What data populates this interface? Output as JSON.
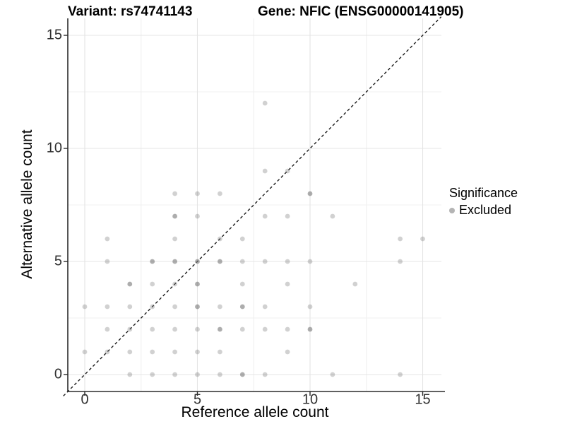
{
  "chart_data": {
    "type": "scatter",
    "title_left": "Variant: rs74741143",
    "title_right": "Gene: NFIC (ENSG00000141905)",
    "xlabel": "Reference allele count",
    "ylabel": "Alternative allele count",
    "x_ticks": [
      0,
      5,
      10,
      15
    ],
    "y_ticks": [
      0,
      5,
      10,
      15
    ],
    "x_minor": [
      2.5,
      7.5,
      12.5
    ],
    "y_minor": [
      2.5,
      7.5,
      12.5
    ],
    "xlim": [
      -0.78,
      16.05
    ],
    "ylim": [
      -0.75,
      15.78
    ],
    "grid": true,
    "legend_position": "right",
    "legend": {
      "title": "Significance",
      "items": [
        {
          "label": "Excluded",
          "color": "#b4b4b4"
        }
      ]
    },
    "reference_line": {
      "type": "identity",
      "style": "dashed",
      "color": "#1a1a1a"
    },
    "point_color": "#7a7a7a",
    "opacity_levels": {
      "light": 0.35,
      "dark": 0.62
    },
    "points": [
      [
        8,
        12,
        1
      ],
      [
        8,
        9,
        1
      ],
      [
        9,
        9,
        1
      ],
      [
        4,
        8,
        1
      ],
      [
        5,
        8,
        1
      ],
      [
        6,
        8,
        1
      ],
      [
        10,
        8,
        2
      ],
      [
        4,
        7,
        2
      ],
      [
        5,
        7,
        1
      ],
      [
        8,
        7,
        1
      ],
      [
        9,
        7,
        1
      ],
      [
        11,
        7,
        1
      ],
      [
        1,
        6,
        1
      ],
      [
        4,
        6,
        1
      ],
      [
        6,
        6,
        1
      ],
      [
        7,
        6,
        1
      ],
      [
        14,
        6,
        1
      ],
      [
        15,
        6,
        1
      ],
      [
        1,
        5,
        1
      ],
      [
        3,
        5,
        2
      ],
      [
        4,
        5,
        2
      ],
      [
        5,
        5,
        2
      ],
      [
        6,
        5,
        2
      ],
      [
        7,
        5,
        1
      ],
      [
        8,
        5,
        1
      ],
      [
        9,
        5,
        1
      ],
      [
        10,
        5,
        1
      ],
      [
        14,
        5,
        1
      ],
      [
        2,
        4,
        2
      ],
      [
        3,
        4,
        1
      ],
      [
        4,
        4,
        1
      ],
      [
        5,
        4,
        2
      ],
      [
        7,
        4,
        1
      ],
      [
        9,
        4,
        1
      ],
      [
        12,
        4,
        1
      ],
      [
        0,
        3,
        1
      ],
      [
        1,
        3,
        1
      ],
      [
        2,
        3,
        1
      ],
      [
        3,
        3,
        1
      ],
      [
        4,
        3,
        1
      ],
      [
        5,
        3,
        2
      ],
      [
        6,
        3,
        1
      ],
      [
        7,
        3,
        2
      ],
      [
        8,
        3,
        1
      ],
      [
        10,
        3,
        1
      ],
      [
        1,
        2,
        1
      ],
      [
        2,
        2,
        1
      ],
      [
        3,
        2,
        1
      ],
      [
        4,
        2,
        1
      ],
      [
        5,
        2,
        1
      ],
      [
        6,
        2,
        2
      ],
      [
        7,
        2,
        1
      ],
      [
        8,
        2,
        1
      ],
      [
        9,
        2,
        1
      ],
      [
        10,
        2,
        2
      ],
      [
        0,
        1,
        1
      ],
      [
        1,
        1,
        1
      ],
      [
        2,
        1,
        1
      ],
      [
        3,
        1,
        1
      ],
      [
        4,
        1,
        1
      ],
      [
        5,
        1,
        1
      ],
      [
        6,
        1,
        1
      ],
      [
        9,
        1,
        1
      ],
      [
        2,
        0,
        1
      ],
      [
        3,
        0,
        1
      ],
      [
        4,
        0,
        1
      ],
      [
        5,
        0,
        1
      ],
      [
        6,
        0,
        1
      ],
      [
        7,
        0,
        2
      ],
      [
        8,
        0,
        1
      ],
      [
        11,
        0,
        1
      ],
      [
        14,
        0,
        1
      ]
    ]
  }
}
